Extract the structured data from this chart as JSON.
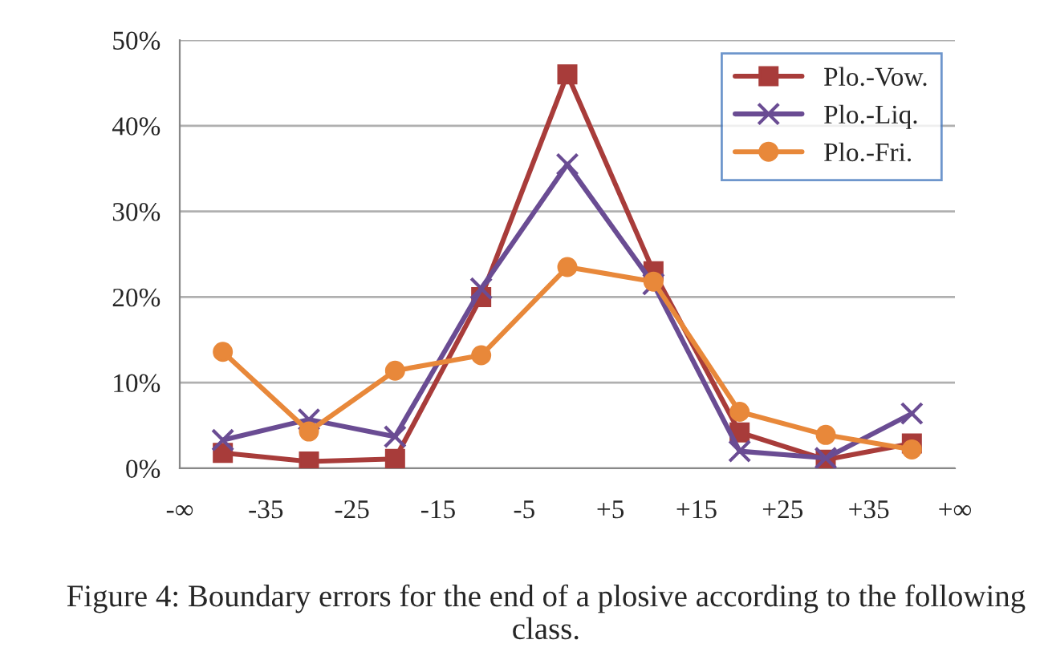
{
  "chart_data": {
    "type": "line",
    "x": [
      -40,
      -30,
      -20,
      -10,
      0,
      10,
      20,
      30,
      40
    ],
    "xlim": [
      -45,
      45
    ],
    "xticks": [
      {
        "value": -45,
        "label": "-∞"
      },
      {
        "value": -35,
        "label": "-35"
      },
      {
        "value": -25,
        "label": "-25"
      },
      {
        "value": -15,
        "label": "-15"
      },
      {
        "value": -5,
        "label": "-5"
      },
      {
        "value": 5,
        "label": "+5"
      },
      {
        "value": 15,
        "label": "+15"
      },
      {
        "value": 25,
        "label": "+25"
      },
      {
        "value": 35,
        "label": "+35"
      },
      {
        "value": 45,
        "label": "+∞"
      }
    ],
    "ylim": [
      0,
      50
    ],
    "yticks": [
      {
        "value": 0,
        "label": "0%"
      },
      {
        "value": 10,
        "label": "10%"
      },
      {
        "value": 20,
        "label": "20%"
      },
      {
        "value": 30,
        "label": "30%"
      },
      {
        "value": 40,
        "label": "40%"
      },
      {
        "value": 50,
        "label": "50%"
      }
    ],
    "grid": "y",
    "legend": "top right",
    "line_style": "solid",
    "series": [
      {
        "name": "Plo.-Vow.",
        "color": "#a83c3a",
        "marker": "square",
        "values": [
          1.8,
          0.8,
          1.1,
          20,
          46,
          23,
          4.2,
          1.0,
          2.9
        ]
      },
      {
        "name": "Plo.-Liq.",
        "color": "#6a4c93",
        "marker": "cross",
        "values": [
          3.3,
          5.7,
          3.7,
          21,
          35.5,
          21.5,
          2.0,
          1.2,
          6.4
        ]
      },
      {
        "name": "Plo.-Fri.",
        "color": "#e8883a",
        "marker": "circle",
        "values": [
          13.6,
          4.3,
          11.4,
          13.2,
          23.5,
          21.8,
          6.6,
          3.9,
          2.2
        ]
      }
    ],
    "annotations": [
      "Figure 4: Boundary errors for the end of a plosive according to the following class."
    ]
  }
}
